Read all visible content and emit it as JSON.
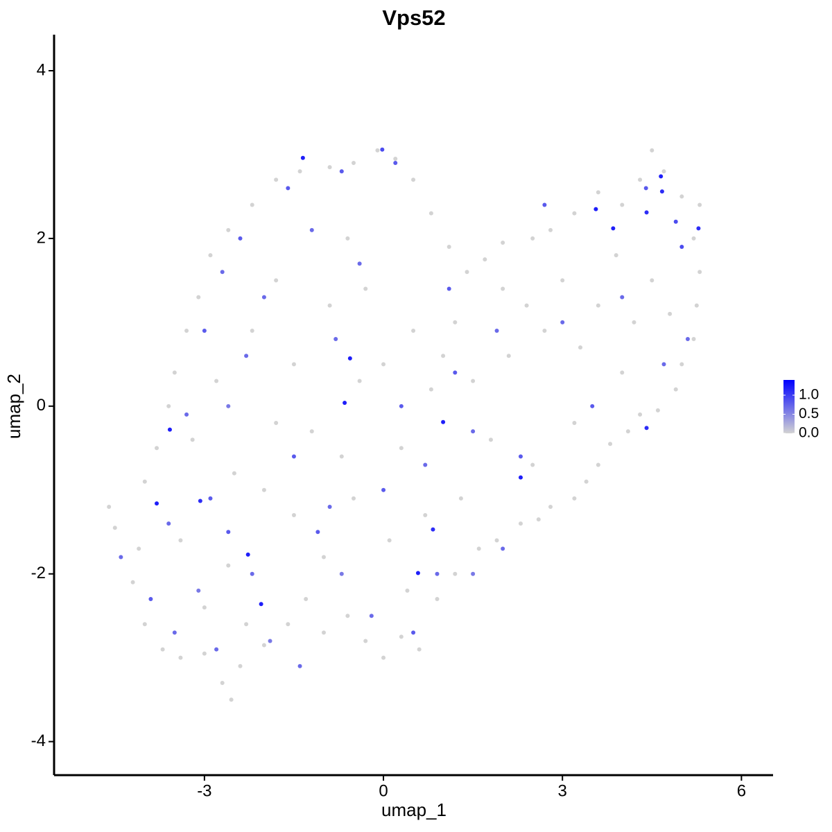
{
  "chart_data": {
    "type": "scatter",
    "title": "Vps52",
    "x_label": "umap_1",
    "y_label": "umap_2",
    "xlim": [
      -5.52,
      6.53
    ],
    "ylim": [
      -4.4,
      4.43
    ],
    "xticks": [
      -3,
      0,
      3,
      6
    ],
    "yticks": [
      -4,
      -2,
      0,
      2,
      4
    ],
    "color_scale": {
      "low": "#d3d3d3",
      "high": "#0000ff",
      "lim": [
        0,
        1.4
      ],
      "ticks": [
        {
          "value": 0,
          "label": "0.0"
        },
        {
          "value": 0.5,
          "label": "0.5"
        },
        {
          "value": 1,
          "label": "1.0"
        }
      ]
    },
    "x": [
      -1.35,
      -0.56,
      -0.65,
      -3.58,
      -3.8,
      -3.07,
      -2.27,
      -2.05,
      1.0,
      0.83,
      0.58,
      2.3,
      4.41,
      3.56,
      3.85,
      4.41,
      4.65,
      4.67,
      5.28,
      -0.02,
      -4.6,
      -4.5,
      -4.1,
      -4.2,
      -4.0,
      -3.7,
      -3.4,
      -3.0,
      -2.7,
      -2.55,
      -2.4,
      -2.0,
      -1.6,
      -1.3,
      -1.0,
      -0.6,
      -0.3,
      0.0,
      0.3,
      0.6,
      0.9,
      1.2,
      1.6,
      1.9,
      2.3,
      2.6,
      2.8,
      3.2,
      3.4,
      3.6,
      3.8,
      4.1,
      4.3,
      4.6,
      4.9,
      5.0,
      5.2,
      5.25,
      5.3,
      5.2,
      5.3,
      5.0,
      4.7,
      4.5,
      4.3,
      4.0,
      3.6,
      3.2,
      2.8,
      2.5,
      2.0,
      1.7,
      1.4,
      1.1,
      0.8,
      0.5,
      0.2,
      -0.1,
      -0.5,
      -0.9,
      -1.4,
      -1.8,
      -2.2,
      -2.6,
      -2.9,
      -3.1,
      -3.3,
      -3.5,
      -3.6,
      -3.8,
      -4.0,
      -3.2,
      -2.8,
      -2.5,
      -2.2,
      -1.8,
      -1.5,
      -1.2,
      -0.9,
      -0.6,
      -0.3,
      0.0,
      0.3,
      0.5,
      0.8,
      1.2,
      1.5,
      1.8,
      2.1,
      2.4,
      2.7,
      3.0,
      3.3,
      3.6,
      3.9,
      4.2,
      4.5,
      4.8,
      4.0,
      3.2,
      2.5,
      1.3,
      0.7,
      0.1,
      -0.5,
      -1.0,
      -1.5,
      -2.0,
      -2.6,
      -3.0,
      -3.4,
      -1.8,
      -0.7,
      0.4,
      -2.3,
      1.0,
      2.0,
      -0.4,
      -4.4,
      -3.9,
      -3.5,
      -3.1,
      -2.8,
      -2.6,
      -2.2,
      -1.9,
      -1.4,
      -1.1,
      -0.7,
      -0.2,
      0.5,
      0.9,
      1.5,
      -3.3,
      -3.0,
      -2.7,
      -2.4,
      -2.0,
      -1.6,
      -1.2,
      -0.7,
      -0.4,
      0.2,
      -2.3,
      -1.5,
      -0.8,
      0.3,
      0.7,
      1.2,
      1.5,
      1.9,
      2.3,
      2.7,
      3.0,
      3.5,
      4.0,
      4.4,
      4.9,
      5.0,
      5.1,
      4.7,
      2.0,
      -2.9,
      0.0,
      -0.9,
      1.1,
      -3.6,
      -2.6
    ],
    "y": [
      2.96,
      0.57,
      0.04,
      -0.28,
      -1.16,
      -1.13,
      -1.77,
      -2.36,
      -0.19,
      -1.47,
      -1.99,
      -0.85,
      -0.26,
      2.35,
      2.12,
      2.31,
      2.74,
      2.56,
      2.12,
      3.06,
      -1.2,
      -1.45,
      -1.7,
      -2.1,
      -2.6,
      -2.9,
      -3.0,
      -2.95,
      -3.3,
      -3.5,
      -3.1,
      -2.85,
      -2.6,
      -2.3,
      -2.7,
      -2.5,
      -2.8,
      -3.0,
      -2.75,
      -2.9,
      -2.3,
      -2.0,
      -1.7,
      -1.6,
      -1.4,
      -1.35,
      -1.2,
      -1.1,
      -0.9,
      -0.7,
      -0.45,
      -0.3,
      -0.1,
      -0.05,
      0.2,
      0.5,
      0.8,
      1.2,
      1.6,
      2.0,
      2.4,
      2.5,
      2.8,
      3.05,
      2.7,
      2.4,
      2.55,
      2.3,
      2.1,
      2.0,
      1.95,
      1.75,
      1.6,
      1.9,
      2.3,
      2.7,
      2.95,
      3.05,
      2.9,
      2.85,
      2.8,
      2.7,
      2.4,
      2.1,
      1.8,
      1.3,
      0.9,
      0.4,
      0.0,
      -0.5,
      -0.9,
      -0.4,
      0.3,
      -0.8,
      0.9,
      1.5,
      0.5,
      -0.3,
      1.2,
      2.0,
      1.4,
      0.5,
      -0.5,
      0.9,
      0.2,
      1.0,
      0.3,
      -0.4,
      0.6,
      1.2,
      0.9,
      1.5,
      0.7,
      1.2,
      1.8,
      1.0,
      1.5,
      1.1,
      0.4,
      -0.2,
      -0.7,
      -1.1,
      -1.3,
      -1.6,
      -1.1,
      -1.8,
      -1.3,
      -1.0,
      -1.9,
      -2.4,
      -1.6,
      -0.2,
      -0.6,
      -2.2,
      -2.6,
      0.6,
      1.4,
      0.3,
      -1.8,
      -2.3,
      -2.7,
      -2.2,
      -2.9,
      -1.5,
      -2.0,
      -2.8,
      -3.1,
      -1.5,
      -2.0,
      -2.5,
      -2.7,
      -2.0,
      -2.0,
      -0.1,
      0.9,
      1.6,
      2.0,
      1.3,
      2.6,
      2.1,
      2.8,
      1.7,
      2.9,
      0.6,
      -0.6,
      0.8,
      0.0,
      -0.7,
      0.4,
      -0.3,
      0.9,
      -0.6,
      2.4,
      1.0,
      0.0,
      1.3,
      2.6,
      2.2,
      1.9,
      0.8,
      0.5,
      -1.7,
      -1.1,
      -1.0,
      -1.2,
      1.4,
      -1.4,
      0.0
    ],
    "values": [
      1.2,
      1.2,
      1.2,
      1.2,
      1.2,
      1.1,
      1.2,
      1.2,
      1.2,
      1.1,
      1.2,
      1.2,
      1.1,
      1.2,
      1.2,
      1.1,
      1.2,
      1.1,
      1.1,
      0.9,
      0,
      0,
      0,
      0,
      0,
      0,
      0,
      0,
      0,
      0,
      0,
      0,
      0,
      0,
      0,
      0,
      0,
      0,
      0,
      0,
      0,
      0,
      0,
      0,
      0,
      0,
      0,
      0,
      0,
      0,
      0,
      0,
      0,
      0,
      0,
      0,
      0,
      0,
      0,
      0,
      0,
      0,
      0,
      0,
      0,
      0,
      0,
      0,
      0,
      0,
      0,
      0,
      0,
      0,
      0,
      0,
      0,
      0,
      0,
      0,
      0,
      0,
      0,
      0,
      0,
      0,
      0,
      0,
      0,
      0,
      0,
      0,
      0,
      0,
      0,
      0,
      0,
      0,
      0,
      0,
      0,
      0,
      0,
      0,
      0,
      0,
      0,
      0,
      0,
      0,
      0,
      0,
      0,
      0,
      0,
      0,
      0,
      0,
      0,
      0,
      0,
      0,
      0,
      0,
      0,
      0,
      0,
      0,
      0,
      0,
      0,
      0,
      0,
      0,
      0,
      0,
      0,
      0,
      0.7,
      0.8,
      0.7,
      0.6,
      0.7,
      0.8,
      0.7,
      0.6,
      0.7,
      0.8,
      0.6,
      0.7,
      0.8,
      0.7,
      0.6,
      0.7,
      0.8,
      0.7,
      0.8,
      0.7,
      0.8,
      0.7,
      0.8,
      0.7,
      0.8,
      0.7,
      0.8,
      0.7,
      0.8,
      0.7,
      0.8,
      0.7,
      0.7,
      0.8,
      0.8,
      0.7,
      0.8,
      0.7,
      0.8,
      0.9,
      0.9,
      0.7,
      0.7,
      0.7,
      0.8,
      0.8,
      0.7,
      0.8,
      0.7,
      0.6
    ]
  }
}
